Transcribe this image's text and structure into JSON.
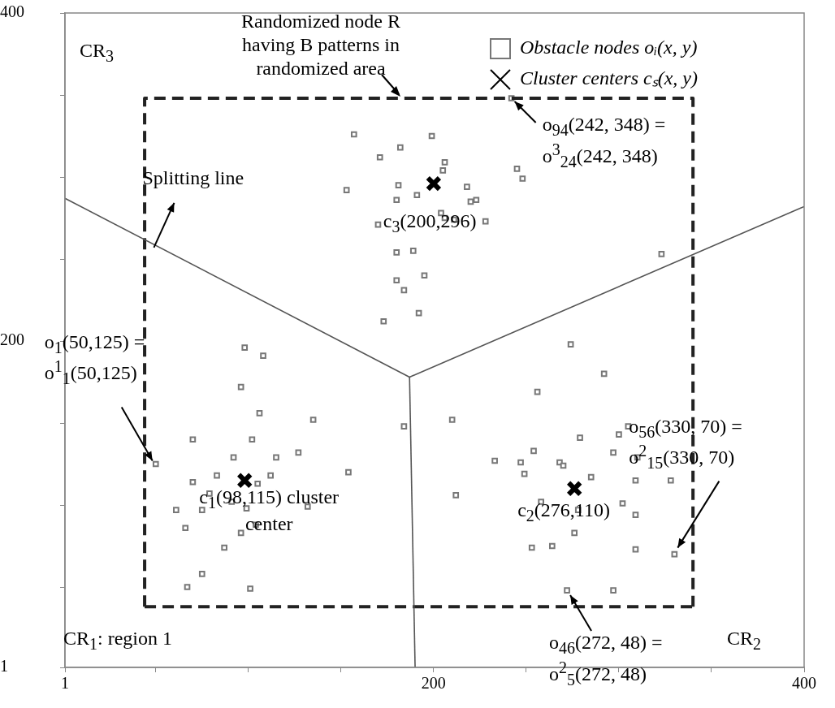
{
  "chart_data": {
    "type": "scatter",
    "xlim": [
      1,
      400
    ],
    "ylim": [
      1,
      400
    ],
    "xticks": [
      1,
      {
        "value": 50,
        "label": null
      },
      {
        "value": 100,
        "label": null
      },
      {
        "value": 150,
        "label": null
      },
      200,
      {
        "value": 250,
        "label": null
      },
      {
        "value": 300,
        "label": null
      },
      {
        "value": 350,
        "label": null
      },
      400
    ],
    "yticks": [
      1,
      {
        "value": 50,
        "label": null
      },
      {
        "value": 100,
        "label": null
      },
      {
        "value": 150,
        "label": null
      },
      200,
      {
        "value": 250,
        "label": null
      },
      {
        "value": 300,
        "label": null
      },
      {
        "value": 350,
        "label": null
      },
      400
    ],
    "grid": false,
    "legend": "top right",
    "series": [
      {
        "type": "line",
        "color": "#555555",
        "marker": "none",
        "line_style": "solid",
        "x": [
          1,
          187,
          400
        ],
        "values": [
          287,
          178,
          282
        ]
      },
      {
        "type": "line",
        "color": "#555555",
        "marker": "none",
        "line_style": "solid",
        "x": [
          187,
          190
        ],
        "values": [
          178,
          1
        ]
      },
      {
        "type": "line",
        "color": "#222222",
        "marker": "none",
        "line_style": "dashed",
        "x": [
          44,
          44,
          340,
          340
        ],
        "values": [
          38,
          348,
          348,
          38
        ]
      },
      {
        "type": "line",
        "color": "#222222",
        "marker": "none",
        "line_style": "dashed",
        "x": [
          44,
          340
        ],
        "values": [
          38,
          38
        ]
      },
      {
        "name": "Obstacle nodes oᵢ(x, y)",
        "color": "#777777",
        "marker": "square",
        "x": [
          157,
          182,
          171,
          153,
          181,
          180,
          170,
          180,
          180,
          184,
          173,
          98,
          199,
          206,
          205,
          245,
          248,
          218,
          191,
          220,
          223,
          204,
          206,
          211,
          228,
          189,
          195,
          192,
          323,
          274,
          108,
          96,
          106,
          135,
          184,
          70,
          102,
          92,
          115,
          127,
          154,
          70,
          83,
          105,
          112,
          79,
          91,
          75,
          61,
          99,
          132,
          66,
          104,
          96,
          87,
          75,
          67,
          101,
          292,
          256,
          210,
          305,
          300,
          279,
          254,
          297,
          310,
          233,
          247,
          268,
          270,
          249,
          285,
          309,
          328,
          212,
          258,
          278,
          302,
          309,
          276,
          253,
          264,
          309,
          297,
          242,
          50,
          330,
          272
        ],
        "values": [
          326,
          318,
          312,
          292,
          295,
          286,
          271,
          254,
          237,
          231,
          212,
          196,
          325,
          309,
          304,
          305,
          299,
          294,
          289,
          285,
          286,
          278,
          275,
          274,
          273,
          255,
          240,
          217,
          253,
          198,
          191,
          172,
          156,
          152,
          148,
          140,
          140,
          129,
          129,
          132,
          120,
          114,
          118,
          113,
          118,
          107,
          102,
          97,
          97,
          98,
          99,
          86,
          88,
          83,
          74,
          58,
          50,
          49,
          180,
          169,
          152,
          148,
          143,
          141,
          133,
          132,
          129,
          127,
          126,
          126,
          124,
          119,
          117,
          115,
          115,
          106,
          102,
          97,
          101,
          94,
          83,
          74,
          75,
          73,
          48,
          348,
          125,
          70,
          48
        ]
      },
      {
        "name": "Cluster centers cₛ(x, y)",
        "color": "#000000",
        "marker": "cross",
        "x": [
          98,
          276,
          200
        ],
        "values": [
          115,
          110,
          296
        ]
      }
    ],
    "annotations": [
      "CR$_{3}$",
      "CR$_{1}$: region 1",
      "CR$_{2}$",
      "Randomized node R having B patterns in randomized area",
      {
        "text": "Splitting line",
        "x": 49,
        "y": 257
      },
      {
        "text": "c$_{1}$(98,115) cluster center",
        "x": 98,
        "y": 115
      },
      {
        "text": "c$_{2}$(276,110)",
        "x": 276,
        "y": 110
      },
      {
        "text": "c$_{3}$(200,296)",
        "x": 200,
        "y": 296
      },
      {
        "text": "o$_{94}$(242, 348) = o$^{3}$$_{24}$(242, 348)",
        "x": 242,
        "y": 348
      },
      {
        "text": "o$_{1}$(50,125) = o$^{1}$$_{1}$(50,125)",
        "x": 50,
        "y": 125
      },
      {
        "text": "o$_{56}$(330, 70) = o$^{2}$$_{15}$(330, 70)",
        "x": 330,
        "y": 70
      },
      {
        "text": "o$_{46}$(272, 48) = o$^{2}$$_{5}$(272, 48)",
        "x": 272,
        "y": 48
      }
    ]
  }
}
